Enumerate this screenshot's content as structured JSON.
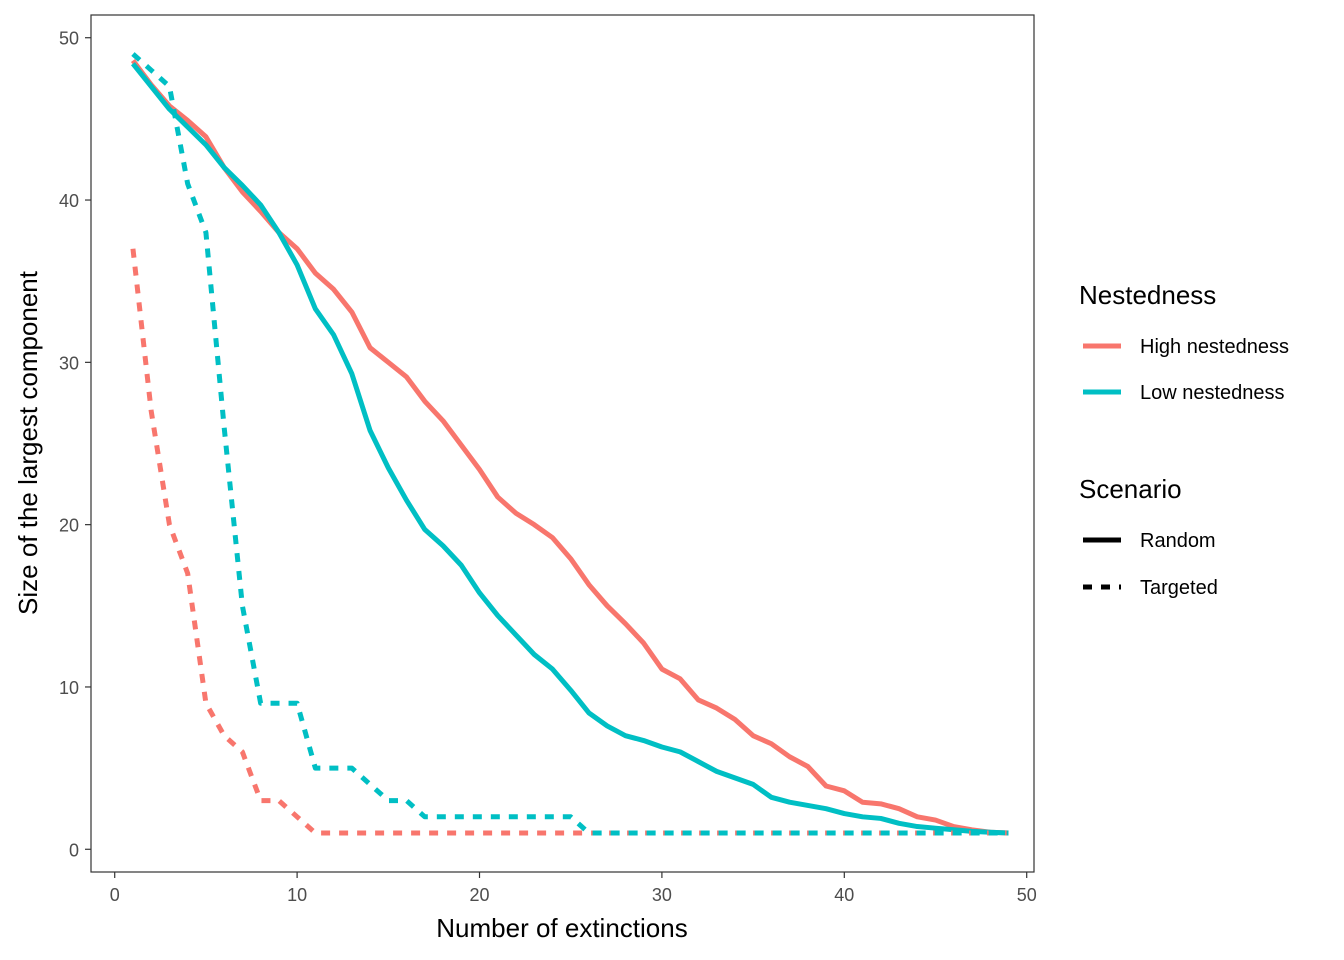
{
  "chart_data": {
    "type": "line",
    "title": "",
    "xlabel": "Number of extinctions",
    "ylabel": "Size of the largest component",
    "xlim": [
      -1.3,
      50.4
    ],
    "ylim": [
      -1.4,
      51.4
    ],
    "xticks": [
      0,
      10,
      20,
      30,
      40,
      50
    ],
    "yticks": [
      0,
      10,
      20,
      30,
      40,
      50
    ],
    "grid": false,
    "legend_position": "right",
    "legends": [
      {
        "title": "Nestedness",
        "entries": [
          {
            "label": "High nestedness",
            "color": "#F8766D"
          },
          {
            "label": "Low nestedness",
            "color": "#00BFC4"
          }
        ]
      },
      {
        "title": "Scenario",
        "entries": [
          {
            "label": "Random",
            "linetype": "solid"
          },
          {
            "label": "Targeted",
            "linetype": "dashed"
          }
        ]
      }
    ],
    "series": [
      {
        "nestedness": "High nestedness",
        "scenario": "Random",
        "color": "#F8766D",
        "linetype": "solid",
        "x": [
          1,
          2,
          3,
          4,
          5,
          6,
          7,
          8,
          9,
          10,
          11,
          12,
          13,
          14,
          15,
          16,
          17,
          18,
          19,
          20,
          21,
          22,
          23,
          24,
          25,
          26,
          27,
          28,
          29,
          30,
          31,
          32,
          33,
          34,
          35,
          36,
          37,
          38,
          39,
          40,
          41,
          42,
          43,
          44,
          45,
          46,
          47,
          48,
          49
        ],
        "y": [
          48.6,
          47.1,
          45.8,
          44.9,
          43.9,
          42.0,
          40.5,
          39.3,
          38.0,
          37.0,
          35.5,
          34.5,
          33.1,
          30.9,
          30.0,
          29.1,
          27.6,
          26.4,
          24.9,
          23.4,
          21.7,
          20.7,
          20.0,
          19.2,
          17.9,
          16.3,
          15.0,
          13.9,
          12.7,
          11.1,
          10.5,
          9.2,
          8.7,
          8.0,
          7.0,
          6.5,
          5.7,
          5.1,
          3.9,
          3.6,
          2.9,
          2.8,
          2.5,
          2.0,
          1.8,
          1.4,
          1.2,
          1.05,
          1.0
        ]
      },
      {
        "nestedness": "Low nestedness",
        "scenario": "Random",
        "color": "#00BFC4",
        "linetype": "solid",
        "x": [
          1,
          2,
          3,
          4,
          5,
          6,
          7,
          8,
          9,
          10,
          11,
          12,
          13,
          14,
          15,
          16,
          17,
          18,
          19,
          20,
          21,
          22,
          23,
          24,
          25,
          26,
          27,
          28,
          29,
          30,
          31,
          32,
          33,
          34,
          35,
          36,
          37,
          38,
          39,
          40,
          41,
          42,
          43,
          44,
          45,
          46,
          47,
          48,
          49
        ],
        "y": [
          48.4,
          47.0,
          45.6,
          44.5,
          43.4,
          42.0,
          40.9,
          39.7,
          38.0,
          36.0,
          33.3,
          31.7,
          29.3,
          25.8,
          23.5,
          21.5,
          19.7,
          18.7,
          17.5,
          15.8,
          14.4,
          13.2,
          12.0,
          11.1,
          9.8,
          8.4,
          7.6,
          7.0,
          6.7,
          6.3,
          6.0,
          5.4,
          4.8,
          4.4,
          4.0,
          3.2,
          2.9,
          2.7,
          2.5,
          2.2,
          2.0,
          1.9,
          1.6,
          1.4,
          1.3,
          1.2,
          1.1,
          1.05,
          1.0
        ]
      },
      {
        "nestedness": "High nestedness",
        "scenario": "Targeted",
        "color": "#F8766D",
        "linetype": "dashed",
        "x": [
          1,
          2,
          3,
          4,
          5,
          6,
          7,
          8,
          9,
          10,
          11,
          12,
          13,
          14,
          15,
          16,
          17,
          18,
          19,
          20,
          21,
          22,
          23,
          24,
          25,
          26,
          27,
          28,
          29,
          30,
          31,
          32,
          33,
          34,
          35,
          36,
          37,
          38,
          39,
          40,
          41,
          42,
          43,
          44,
          45,
          46,
          47,
          48,
          49
        ],
        "y": [
          37,
          27,
          20,
          17,
          9,
          7,
          6,
          3,
          3,
          2,
          1,
          1,
          1,
          1,
          1,
          1,
          1,
          1,
          1,
          1,
          1,
          1,
          1,
          1,
          1,
          1,
          1,
          1,
          1,
          1,
          1,
          1,
          1,
          1,
          1,
          1,
          1,
          1,
          1,
          1,
          1,
          1,
          1,
          1,
          1,
          1,
          1,
          1,
          1
        ]
      },
      {
        "nestedness": "Low nestedness",
        "scenario": "Targeted",
        "color": "#00BFC4",
        "linetype": "dashed",
        "x": [
          1,
          2,
          3,
          4,
          5,
          6,
          7,
          8,
          9,
          10,
          11,
          12,
          13,
          14,
          15,
          16,
          17,
          18,
          19,
          20,
          21,
          22,
          23,
          24,
          25,
          26,
          27,
          28,
          29,
          30,
          31,
          32,
          33,
          34,
          35,
          36,
          37,
          38,
          39,
          40,
          41,
          42,
          43,
          44,
          45,
          46,
          47,
          48,
          49
        ],
        "y": [
          49,
          48,
          47,
          41,
          38,
          26,
          15,
          9,
          9,
          9,
          5,
          5,
          5,
          4,
          3,
          3,
          2,
          2,
          2,
          2,
          2,
          2,
          2,
          2,
          2,
          1,
          1,
          1,
          1,
          1,
          1,
          1,
          1,
          1,
          1,
          1,
          1,
          1,
          1,
          1,
          1,
          1,
          1,
          1,
          1,
          1,
          1,
          1,
          1
        ]
      }
    ]
  }
}
